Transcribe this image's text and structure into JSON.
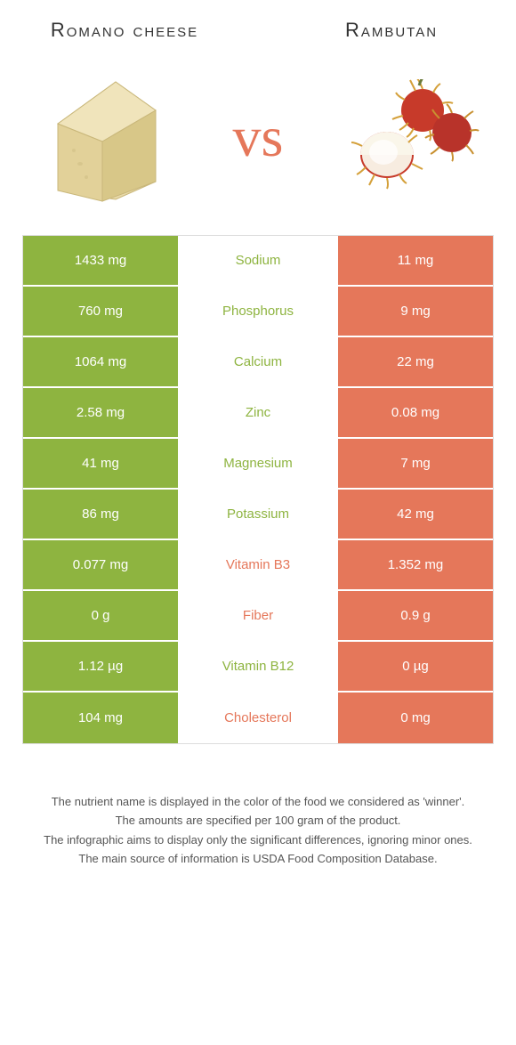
{
  "colors": {
    "left_bg": "#8eb440",
    "right_bg": "#e5775a",
    "mid_left_text": "#8eb440",
    "mid_right_text": "#e5775a"
  },
  "left": {
    "title": "Romano cheese"
  },
  "right": {
    "title": "Rambutan"
  },
  "vs": "vs",
  "rows": [
    {
      "left": "1433 mg",
      "label": "Sodium",
      "right": "11 mg",
      "winner": "left"
    },
    {
      "left": "760 mg",
      "label": "Phosphorus",
      "right": "9 mg",
      "winner": "left"
    },
    {
      "left": "1064 mg",
      "label": "Calcium",
      "right": "22 mg",
      "winner": "left"
    },
    {
      "left": "2.58 mg",
      "label": "Zinc",
      "right": "0.08 mg",
      "winner": "left"
    },
    {
      "left": "41 mg",
      "label": "Magnesium",
      "right": "7 mg",
      "winner": "left"
    },
    {
      "left": "86 mg",
      "label": "Potassium",
      "right": "42 mg",
      "winner": "left"
    },
    {
      "left": "0.077 mg",
      "label": "Vitamin B3",
      "right": "1.352 mg",
      "winner": "right"
    },
    {
      "left": "0 g",
      "label": "Fiber",
      "right": "0.9 g",
      "winner": "right"
    },
    {
      "left": "1.12 µg",
      "label": "Vitamin B12",
      "right": "0 µg",
      "winner": "left"
    },
    {
      "left": "104 mg",
      "label": "Cholesterol",
      "right": "0 mg",
      "winner": "right"
    }
  ],
  "footer": [
    "The nutrient name is displayed in the color of the food we considered as 'winner'.",
    "The amounts are specified per 100 gram of the product.",
    "The infographic aims to display only the significant differences, ignoring minor ones.",
    "The main source of information is USDA Food Composition Database."
  ]
}
